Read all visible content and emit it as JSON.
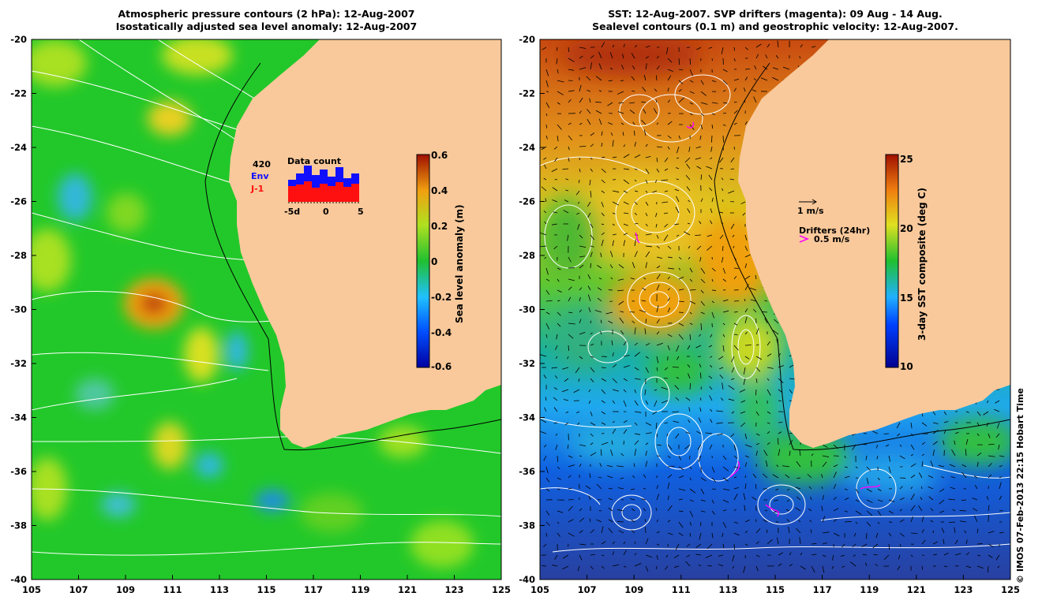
{
  "left_panel": {
    "title_line1": "Atmospheric pressure contours (2 hPa): 12-Aug-2007",
    "title_line2": "Isostatically adjusted sea level anomaly: 12-Aug-2007",
    "colorbar": {
      "label": "Sea level anomaly (m)",
      "ticks": [
        "0.6",
        "0.4",
        "0.2",
        "0",
        "-0.2",
        "-0.4",
        "-0.6"
      ],
      "range": [
        -0.6,
        0.6
      ]
    },
    "data_count": {
      "title": "Data count",
      "total": "420",
      "env_label": "Env",
      "j1_label": "J-1",
      "x_ticks": [
        "-5d",
        "0",
        "5"
      ],
      "env_color": "#1010ff",
      "j1_color": "#ff1010"
    }
  },
  "right_panel": {
    "title_line1": "SST: 12-Aug-2007. SVP drifters (magenta): 09 Aug - 14 Aug.",
    "title_line2": "Sealevel contours (0.1 m) and geostrophic velocity: 12-Aug-2007.",
    "colorbar": {
      "label": "3-day SST composite (deg C)",
      "ticks": [
        "25",
        "20",
        "15",
        "10"
      ],
      "range": [
        10,
        25
      ]
    },
    "legend": {
      "velocity_scale": "1 m/s",
      "drifters_title": "Drifters (24hr)",
      "drifters_scale": "0.5 m/s",
      "drifter_color": "#ff00ff"
    }
  },
  "axes": {
    "lon_ticks": [
      "105",
      "107",
      "109",
      "111",
      "113",
      "115",
      "117",
      "119",
      "121",
      "123",
      "125"
    ],
    "lat_ticks": [
      "-20",
      "-22",
      "-24",
      "-26",
      "-28",
      "-30",
      "-32",
      "-34",
      "-36",
      "-38",
      "-40"
    ],
    "lon_range": [
      105,
      125
    ],
    "lat_range": [
      -40,
      -20
    ]
  },
  "colors": {
    "land": "#f9c99b",
    "ocean_green": "#22c82a",
    "sst_warm": "#d05010"
  },
  "credit": "© IMOS 07-Feb-2013 22:15 Hobart Time"
}
